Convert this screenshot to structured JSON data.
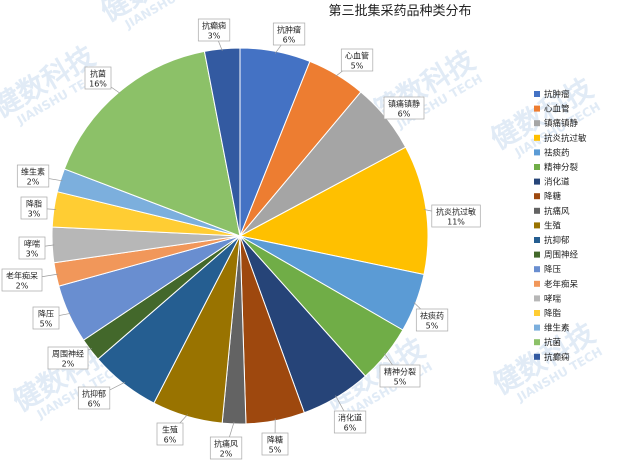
{
  "chart_data": {
    "type": "pie",
    "title": "第三批集采药品种类分布",
    "slices": [
      {
        "name": "抗肿瘤",
        "value": 6,
        "label": "6%",
        "color": "#4472c4"
      },
      {
        "name": "心血管",
        "value": 5,
        "label": "5%",
        "color": "#ed7d31"
      },
      {
        "name": "镇痛镇静",
        "value": 6,
        "label": "6%",
        "color": "#a5a5a5"
      },
      {
        "name": "抗炎抗过敏",
        "value": 11,
        "label": "11%",
        "color": "#ffc000"
      },
      {
        "name": "祛痰药",
        "value": 5,
        "label": "5%",
        "color": "#5b9bd5"
      },
      {
        "name": "精神分裂",
        "value": 5,
        "label": "5%",
        "color": "#70ad47"
      },
      {
        "name": "消化道",
        "value": 6,
        "label": "6%",
        "color": "#264478"
      },
      {
        "name": "降糖",
        "value": 5,
        "label": "5%",
        "color": "#9e480e"
      },
      {
        "name": "抗痛风",
        "value": 2,
        "label": "2%",
        "color": "#636363"
      },
      {
        "name": "生殖",
        "value": 6,
        "label": "6%",
        "color": "#997300"
      },
      {
        "name": "抗抑郁",
        "value": 6,
        "label": "6%",
        "color": "#255e91"
      },
      {
        "name": "周围神经",
        "value": 2,
        "label": "2%",
        "color": "#43682b"
      },
      {
        "name": "降压",
        "value": 5,
        "label": "5%",
        "color": "#698ed0"
      },
      {
        "name": "老年痴呆",
        "value": 2,
        "label": "2%",
        "color": "#f1975a"
      },
      {
        "name": "哮喘",
        "value": 3,
        "label": "3%",
        "color": "#b7b7b7"
      },
      {
        "name": "降脂",
        "value": 3,
        "label": "3%",
        "color": "#ffcd33"
      },
      {
        "name": "维生素",
        "value": 2,
        "label": "2%",
        "color": "#7cafdd"
      },
      {
        "name": "抗菌",
        "value": 16,
        "label": "16%",
        "color": "#8cc168"
      },
      {
        "name": "抗癫痫",
        "value": 3,
        "label": "3%",
        "color": "#335aa1"
      }
    ],
    "legend_placement": "right"
  },
  "watermark": {
    "cn": "健数科技",
    "en": "JIANSHU TECH"
  }
}
